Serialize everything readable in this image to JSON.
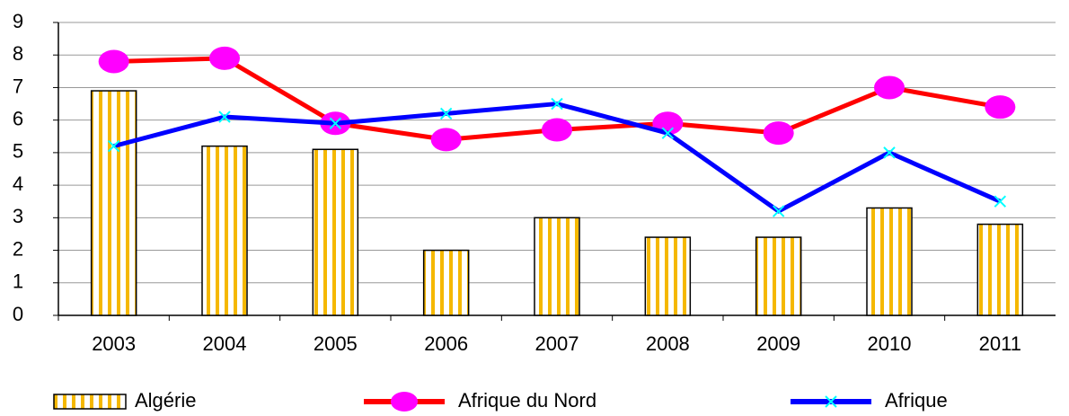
{
  "chart_data": {
    "type": "bar",
    "categories": [
      "2003",
      "2004",
      "2005",
      "2006",
      "2007",
      "2008",
      "2009",
      "2010",
      "2011"
    ],
    "series": [
      {
        "name": "Algérie",
        "type": "bar",
        "color": "#f5b800",
        "values": [
          6.9,
          5.2,
          5.1,
          2.0,
          3.0,
          2.4,
          2.4,
          3.3,
          2.8
        ]
      },
      {
        "name": "Afrique du Nord",
        "type": "line",
        "color": "#ff0000",
        "marker": "circle",
        "marker_color": "#ff00ff",
        "values": [
          7.8,
          7.9,
          5.9,
          5.4,
          5.7,
          5.9,
          5.6,
          7.0,
          6.4
        ]
      },
      {
        "name": "Afrique",
        "type": "line",
        "color": "#0000ff",
        "marker": "x",
        "marker_color": "#00ffff",
        "values": [
          5.2,
          6.1,
          5.9,
          6.2,
          6.5,
          5.6,
          3.2,
          5.0,
          3.5
        ]
      }
    ],
    "ylim": [
      0,
      9
    ],
    "yticks": [
      0,
      1,
      2,
      3,
      4,
      5,
      6,
      7,
      8,
      9
    ],
    "grid": true,
    "legend": "bottom"
  }
}
